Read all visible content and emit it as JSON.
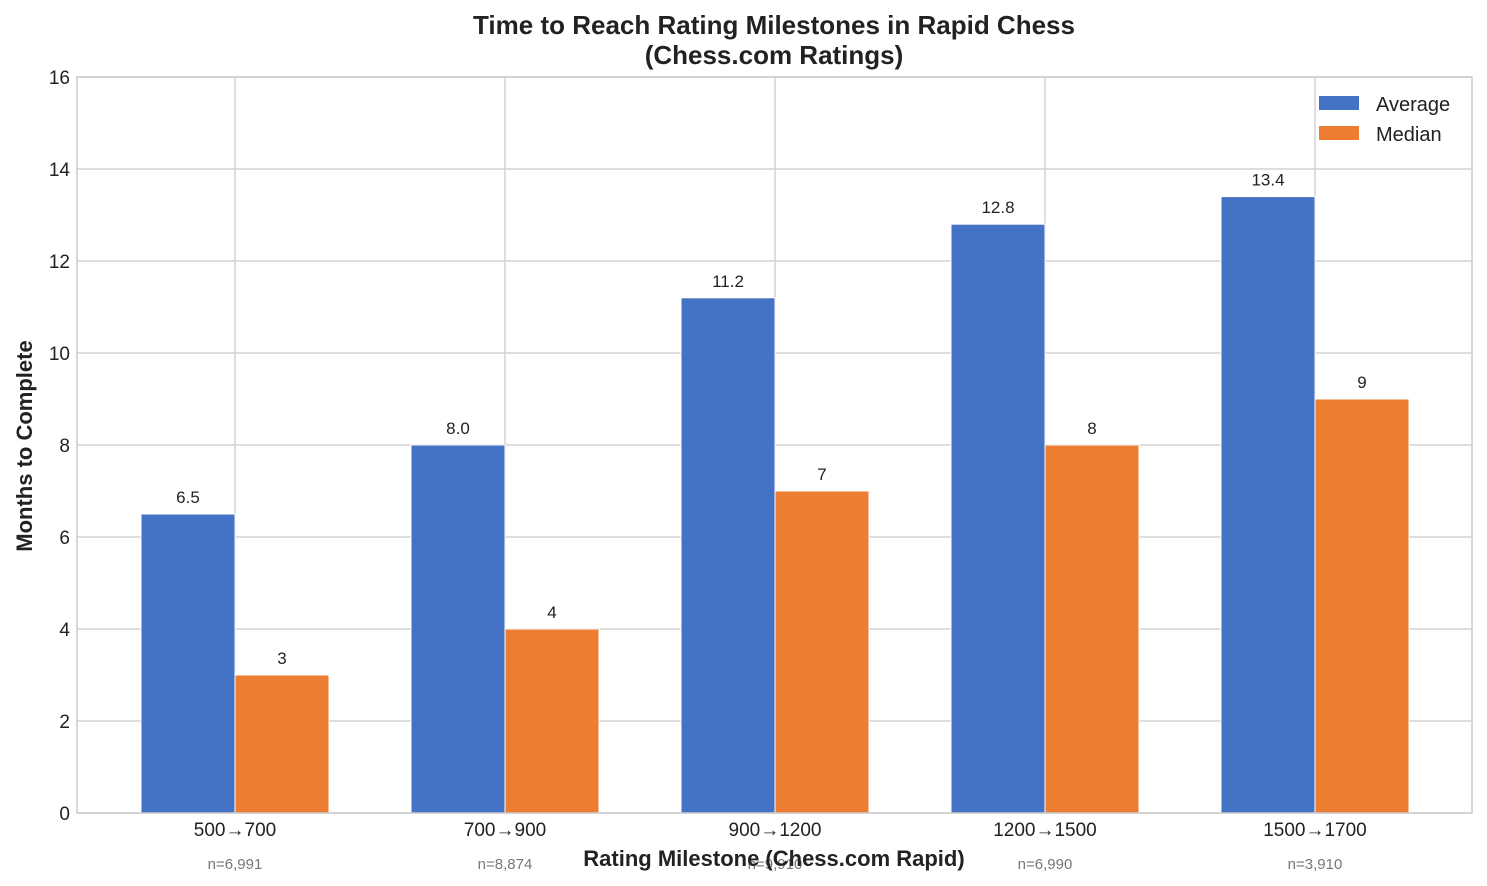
{
  "chart_data": {
    "type": "bar",
    "title": "Time to Reach Rating Milestones in Rapid Chess",
    "subtitle": "(Chess.com Ratings)",
    "xlabel": "Rating Milestone (Chess.com Rapid)",
    "ylabel": "Months to Complete",
    "ylim": [
      0,
      16
    ],
    "yticks": [
      "0",
      "2",
      "4",
      "6",
      "8",
      "10",
      "12",
      "14",
      "16"
    ],
    "categories": [
      "500→700",
      "700→900",
      "900→1200",
      "1200→1500",
      "1500→1700"
    ],
    "sample_sizes": [
      "n=6,991",
      "n=8,874",
      "n=9,910",
      "n=6,990",
      "n=3,910"
    ],
    "series": [
      {
        "name": "Average",
        "color": "#4472c4",
        "values": [
          6.5,
          8.0,
          11.2,
          12.8,
          13.4
        ],
        "labels": [
          "6.5",
          "8.0",
          "11.2",
          "12.8",
          "13.4"
        ]
      },
      {
        "name": "Median",
        "color": "#ed7d31",
        "values": [
          3,
          4,
          7,
          8,
          9
        ],
        "labels": [
          "3",
          "4",
          "7",
          "8",
          "9"
        ]
      }
    ],
    "grid": true,
    "legend_position": "top-right"
  }
}
